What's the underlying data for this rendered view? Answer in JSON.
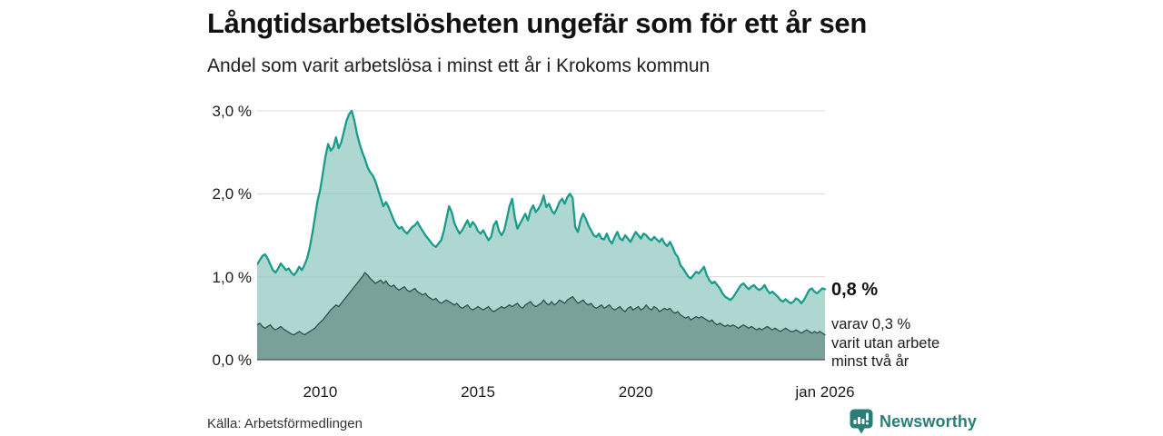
{
  "header": {
    "title": "Långtidsarbetslösheten ungefär som för ett år sen",
    "subtitle": "Andel som varit arbetslösa i minst ett år i Krokoms kommun"
  },
  "annotations": {
    "end_value": "0,8 %",
    "sub_lines": [
      "varav 0,3 %",
      "varit utan arbete",
      "minst två år"
    ]
  },
  "source": "Källa: Arbetsförmedlingen",
  "brand": {
    "name": "Newsworthy",
    "icon": "newsworthy-bar-chart-bubble-icon",
    "color": "#2b7e77"
  },
  "colors": {
    "line_light": "#1a9c8b",
    "fill_light": "#8fc7bf",
    "fill_light_opacity": 0.72,
    "line_dark": "#32504b",
    "fill_dark": "#6a928a",
    "fill_dark_opacity": 0.78,
    "grid": "#d8d8d8",
    "axis": "#4d4d4d"
  },
  "chart_data": {
    "type": "area",
    "title": "Långtidsarbetslösheten ungefär som för ett år sen",
    "subtitle": "Andel som varit arbetslösa i minst ett år i Krokoms kommun",
    "x_unit": "month",
    "x_start": "jan 2008",
    "x_end": "jan 2026",
    "ylim": [
      0,
      3.0
    ],
    "grid": true,
    "legend": false,
    "y_ticks": [
      {
        "value": 3.0,
        "label": "3,0 %"
      },
      {
        "value": 2.0,
        "label": "2,0 %"
      },
      {
        "value": 1.0,
        "label": "1,0 %"
      },
      {
        "value": 0.0,
        "label": "0,0 %"
      }
    ],
    "x_ticks": [
      {
        "index": 24,
        "label": "2010"
      },
      {
        "index": 84,
        "label": "2015"
      },
      {
        "index": 144,
        "label": "2020"
      },
      {
        "index": 216,
        "label": "jan 2026"
      }
    ],
    "series": [
      {
        "name": "Andel arbetslösa minst ett år",
        "end_label": "0,8 %",
        "values": [
          1.15,
          1.2,
          1.25,
          1.27,
          1.22,
          1.15,
          1.08,
          1.05,
          1.1,
          1.16,
          1.12,
          1.08,
          1.1,
          1.05,
          1.02,
          1.06,
          1.12,
          1.08,
          1.14,
          1.22,
          1.35,
          1.52,
          1.72,
          1.92,
          2.05,
          2.25,
          2.45,
          2.6,
          2.52,
          2.56,
          2.68,
          2.55,
          2.62,
          2.75,
          2.88,
          2.96,
          3.0,
          2.88,
          2.72,
          2.6,
          2.5,
          2.42,
          2.32,
          2.26,
          2.22,
          2.15,
          2.05,
          1.95,
          1.85,
          1.9,
          1.84,
          1.76,
          1.68,
          1.62,
          1.58,
          1.6,
          1.55,
          1.52,
          1.56,
          1.6,
          1.62,
          1.66,
          1.6,
          1.55,
          1.5,
          1.46,
          1.42,
          1.38,
          1.36,
          1.4,
          1.44,
          1.55,
          1.7,
          1.85,
          1.78,
          1.65,
          1.58,
          1.52,
          1.56,
          1.62,
          1.68,
          1.6,
          1.66,
          1.62,
          1.55,
          1.52,
          1.56,
          1.5,
          1.44,
          1.48,
          1.62,
          1.67,
          1.55,
          1.5,
          1.56,
          1.7,
          1.85,
          1.94,
          1.72,
          1.58,
          1.64,
          1.7,
          1.76,
          1.68,
          1.8,
          1.86,
          1.78,
          1.82,
          1.88,
          1.98,
          1.84,
          1.88,
          1.8,
          1.76,
          1.82,
          1.9,
          1.94,
          1.88,
          1.96,
          2.0,
          1.95,
          1.6,
          1.54,
          1.68,
          1.76,
          1.7,
          1.62,
          1.56,
          1.5,
          1.48,
          1.52,
          1.46,
          1.45,
          1.52,
          1.44,
          1.4,
          1.48,
          1.54,
          1.46,
          1.44,
          1.5,
          1.46,
          1.42,
          1.48,
          1.54,
          1.5,
          1.46,
          1.52,
          1.5,
          1.46,
          1.44,
          1.48,
          1.45,
          1.42,
          1.46,
          1.4,
          1.37,
          1.42,
          1.36,
          1.28,
          1.24,
          1.14,
          1.1,
          1.05,
          1.0,
          0.98,
          1.02,
          1.06,
          1.04,
          1.08,
          1.12,
          1.02,
          0.96,
          0.92,
          0.94,
          0.9,
          0.86,
          0.8,
          0.76,
          0.74,
          0.72,
          0.75,
          0.8,
          0.85,
          0.9,
          0.92,
          0.88,
          0.85,
          0.88,
          0.9,
          0.86,
          0.84,
          0.86,
          0.9,
          0.84,
          0.8,
          0.82,
          0.79,
          0.76,
          0.72,
          0.7,
          0.73,
          0.7,
          0.68,
          0.7,
          0.74,
          0.72,
          0.68,
          0.72,
          0.78,
          0.84,
          0.86,
          0.82,
          0.8,
          0.83,
          0.86,
          0.85
        ]
      },
      {
        "name": "varav utan arbete minst två år",
        "end_label": "0,3 %",
        "values": [
          0.42,
          0.44,
          0.4,
          0.38,
          0.4,
          0.42,
          0.38,
          0.36,
          0.38,
          0.4,
          0.37,
          0.35,
          0.33,
          0.31,
          0.3,
          0.32,
          0.34,
          0.32,
          0.3,
          0.32,
          0.34,
          0.36,
          0.38,
          0.42,
          0.45,
          0.48,
          0.52,
          0.56,
          0.6,
          0.63,
          0.66,
          0.64,
          0.68,
          0.72,
          0.76,
          0.8,
          0.84,
          0.88,
          0.92,
          0.96,
          1.0,
          1.05,
          1.02,
          0.98,
          0.95,
          0.92,
          0.94,
          0.96,
          0.92,
          0.95,
          0.9,
          0.88,
          0.9,
          0.86,
          0.84,
          0.86,
          0.88,
          0.84,
          0.82,
          0.84,
          0.86,
          0.82,
          0.8,
          0.78,
          0.8,
          0.76,
          0.74,
          0.72,
          0.74,
          0.7,
          0.68,
          0.7,
          0.72,
          0.7,
          0.68,
          0.66,
          0.68,
          0.64,
          0.62,
          0.64,
          0.66,
          0.62,
          0.6,
          0.62,
          0.64,
          0.62,
          0.6,
          0.62,
          0.64,
          0.6,
          0.58,
          0.6,
          0.62,
          0.64,
          0.62,
          0.64,
          0.66,
          0.64,
          0.66,
          0.68,
          0.64,
          0.62,
          0.66,
          0.68,
          0.7,
          0.66,
          0.64,
          0.66,
          0.68,
          0.72,
          0.68,
          0.66,
          0.7,
          0.66,
          0.68,
          0.72,
          0.7,
          0.68,
          0.72,
          0.74,
          0.76,
          0.72,
          0.68,
          0.7,
          0.72,
          0.68,
          0.66,
          0.68,
          0.64,
          0.62,
          0.64,
          0.66,
          0.62,
          0.64,
          0.66,
          0.62,
          0.6,
          0.62,
          0.64,
          0.6,
          0.58,
          0.62,
          0.64,
          0.6,
          0.62,
          0.64,
          0.6,
          0.62,
          0.66,
          0.62,
          0.6,
          0.64,
          0.62,
          0.58,
          0.6,
          0.62,
          0.6,
          0.62,
          0.58,
          0.56,
          0.58,
          0.54,
          0.52,
          0.5,
          0.52,
          0.48,
          0.5,
          0.52,
          0.5,
          0.52,
          0.5,
          0.48,
          0.46,
          0.48,
          0.44,
          0.42,
          0.44,
          0.42,
          0.4,
          0.42,
          0.4,
          0.42,
          0.4,
          0.38,
          0.4,
          0.42,
          0.4,
          0.38,
          0.4,
          0.38,
          0.36,
          0.38,
          0.36,
          0.38,
          0.4,
          0.38,
          0.36,
          0.38,
          0.36,
          0.34,
          0.36,
          0.38,
          0.36,
          0.34,
          0.34,
          0.36,
          0.34,
          0.32,
          0.34,
          0.36,
          0.34,
          0.32,
          0.34,
          0.32,
          0.34,
          0.32,
          0.3
        ]
      }
    ]
  }
}
